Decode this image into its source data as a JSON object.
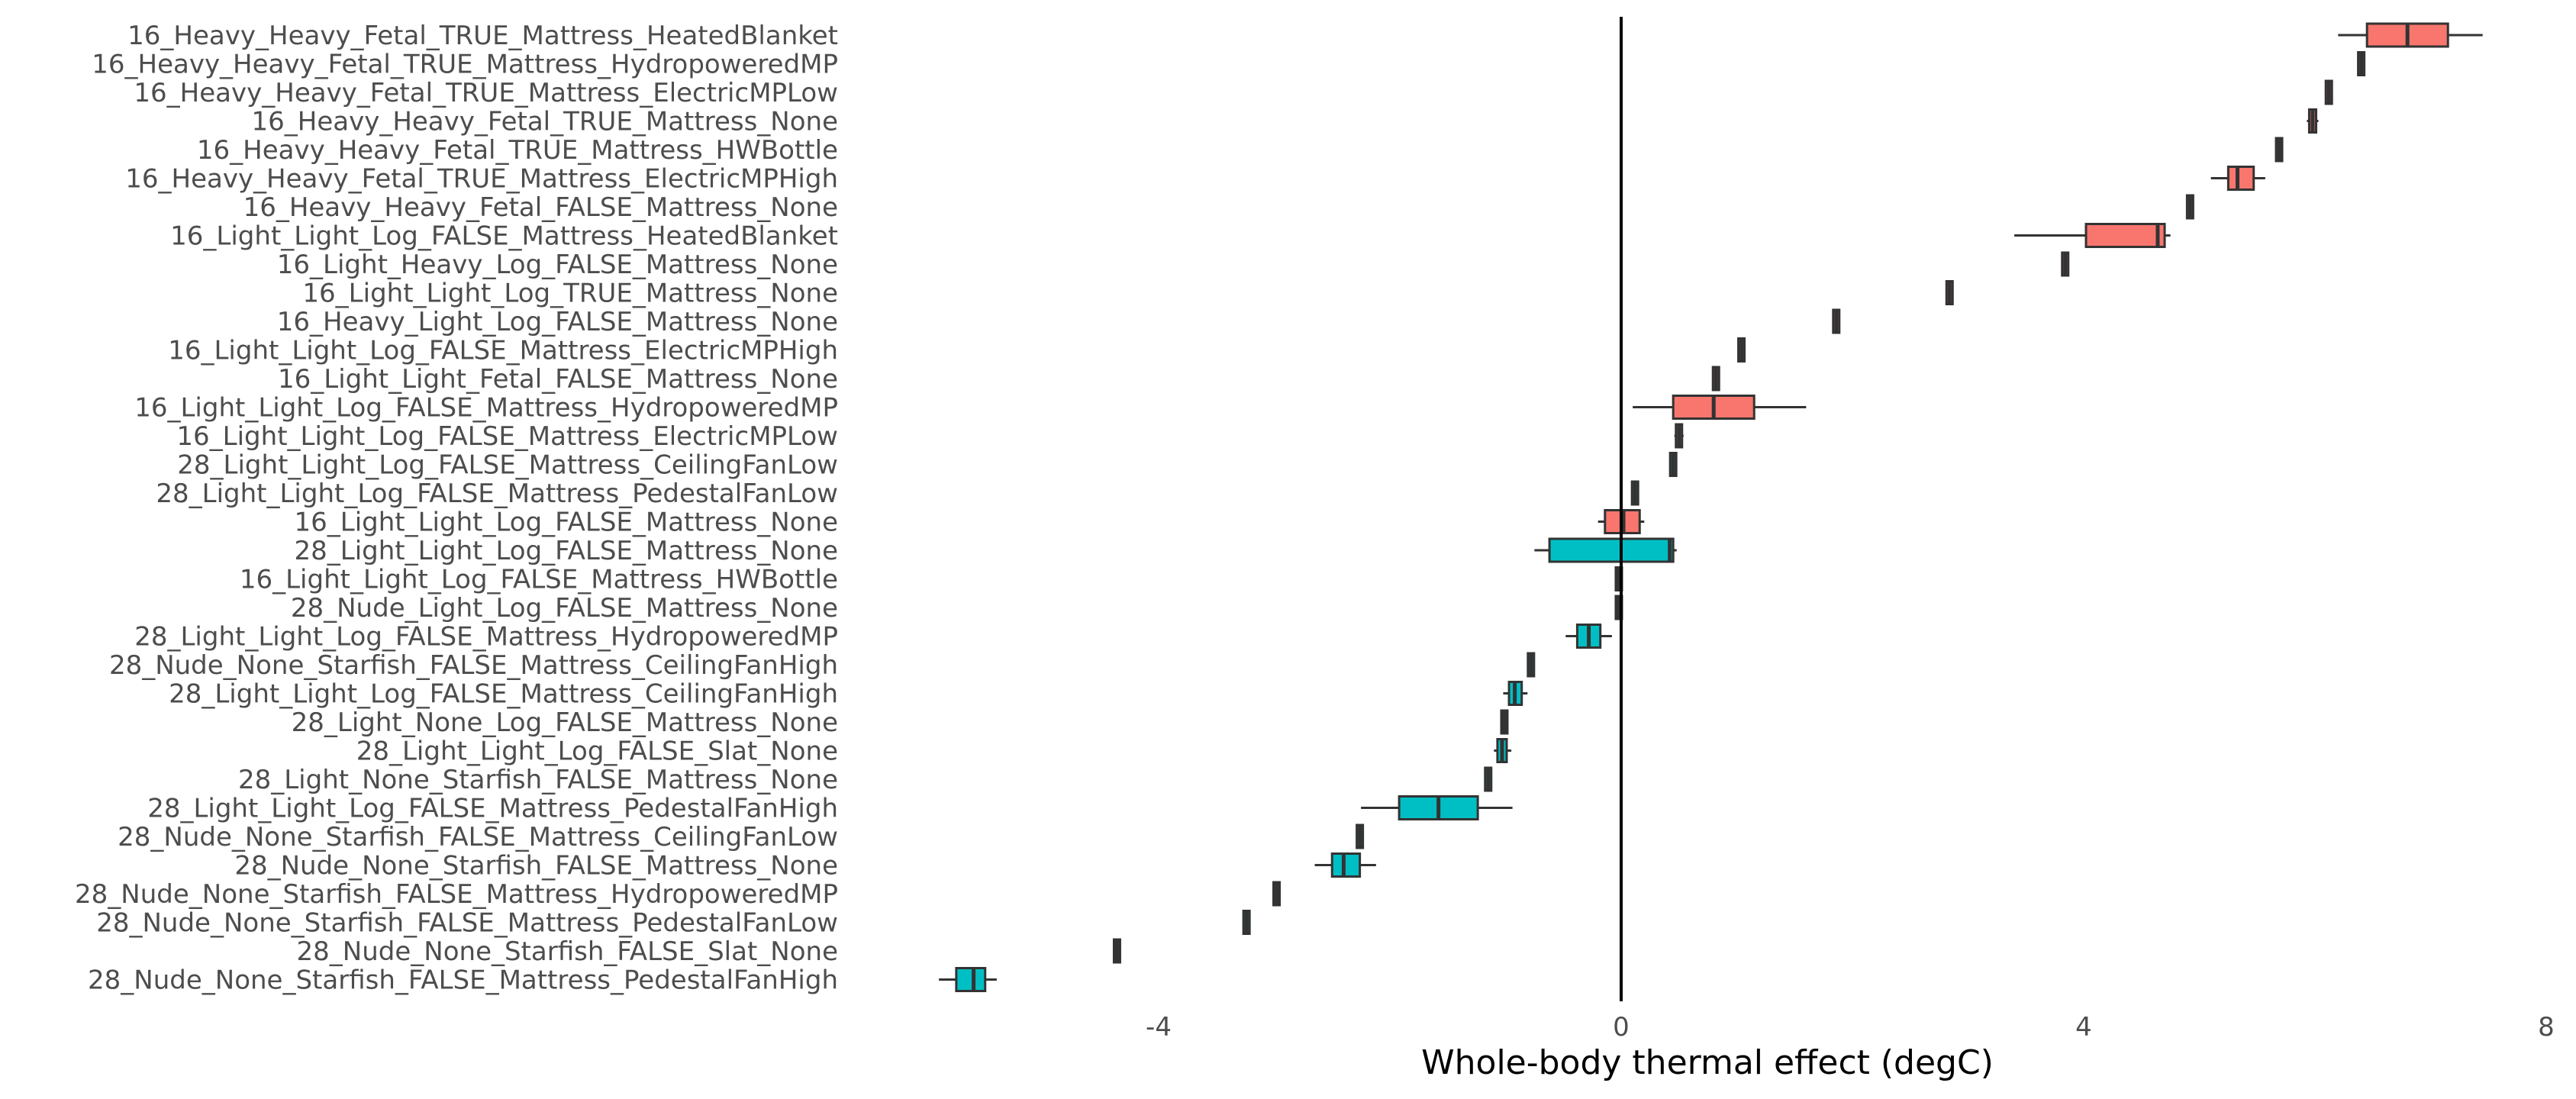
{
  "chart_data": {
    "type": "boxplot-horizontal",
    "xlabel": "Whole-body thermal effect (degC)",
    "ylabel": "",
    "title": "",
    "xlim": [
      -6,
      8
    ],
    "xticks": [
      -4,
      0,
      4,
      8
    ],
    "reference_line_x": 0,
    "grid": false,
    "legend": "none",
    "group_colors": {
      "16": "#F8766D",
      "28": "#00BFC4"
    },
    "edge_color": "#333333",
    "categories": [
      "16_Heavy_Heavy_Fetal_TRUE_Mattress_HeatedBlanket",
      "16_Heavy_Heavy_Fetal_TRUE_Mattress_HydropoweredMP",
      "16_Heavy_Heavy_Fetal_TRUE_Mattress_ElectricMPLow",
      "16_Heavy_Heavy_Fetal_TRUE_Mattress_None",
      "16_Heavy_Heavy_Fetal_TRUE_Mattress_HWBottle",
      "16_Heavy_Heavy_Fetal_TRUE_Mattress_ElectricMPHigh",
      "16_Heavy_Heavy_Fetal_FALSE_Mattress_None",
      "16_Light_Light_Log_FALSE_Mattress_HeatedBlanket",
      "16_Light_Heavy_Log_FALSE_Mattress_None",
      "16_Light_Light_Log_TRUE_Mattress_None",
      "16_Heavy_Light_Log_FALSE_Mattress_None",
      "16_Light_Light_Log_FALSE_Mattress_ElectricMPHigh",
      "16_Light_Light_Fetal_FALSE_Mattress_None",
      "16_Light_Light_Log_FALSE_Mattress_HydropoweredMP",
      "16_Light_Light_Log_FALSE_Mattress_ElectricMPLow",
      "28_Light_Light_Log_FALSE_Mattress_CeilingFanLow",
      "28_Light_Light_Log_FALSE_Mattress_PedestalFanLow",
      "16_Light_Light_Log_FALSE_Mattress_None",
      "28_Light_Light_Log_FALSE_Mattress_None",
      "16_Light_Light_Log_FALSE_Mattress_HWBottle",
      "28_Nude_Light_Log_FALSE_Mattress_None",
      "28_Light_Light_Log_FALSE_Mattress_HydropoweredMP",
      "28_Nude_None_Starfish_FALSE_Mattress_CeilingFanHigh",
      "28_Light_Light_Log_FALSE_Mattress_CeilingFanHigh",
      "28_Light_None_Log_FALSE_Mattress_None",
      "28_Light_Light_Log_FALSE_Slat_None",
      "28_Light_None_Starfish_FALSE_Mattress_None",
      "28_Light_Light_Log_FALSE_Mattress_PedestalFanHigh",
      "28_Nude_None_Starfish_FALSE_Mattress_CeilingFanLow",
      "28_Nude_None_Starfish_FALSE_Mattress_None",
      "28_Nude_None_Starfish_FALSE_Mattress_HydropoweredMP",
      "28_Nude_None_Starfish_FALSE_Mattress_PedestalFanLow",
      "28_Nude_None_Starfish_FALSE_Slat_None",
      "28_Nude_None_Starfish_FALSE_Mattress_PedestalFanHigh"
    ],
    "boxes": [
      {
        "group": "16",
        "min": 6.2,
        "q1": 6.45,
        "median": 6.8,
        "q3": 7.15,
        "max": 7.45
      },
      {
        "group": "16",
        "min": 6.38,
        "q1": 6.39,
        "median": 6.4,
        "q3": 6.41,
        "max": 6.42
      },
      {
        "group": "16",
        "min": 6.1,
        "q1": 6.11,
        "median": 6.12,
        "q3": 6.13,
        "max": 6.14
      },
      {
        "group": "16",
        "min": 5.93,
        "q1": 5.95,
        "median": 5.98,
        "q3": 6.01,
        "max": 6.03
      },
      {
        "group": "16",
        "min": 5.67,
        "q1": 5.68,
        "median": 5.69,
        "q3": 5.7,
        "max": 5.71
      },
      {
        "group": "16",
        "min": 5.1,
        "q1": 5.25,
        "median": 5.33,
        "q3": 5.47,
        "max": 5.57
      },
      {
        "group": "16",
        "min": 4.9,
        "q1": 4.91,
        "median": 4.92,
        "q3": 4.93,
        "max": 4.94
      },
      {
        "group": "16",
        "min": 3.4,
        "q1": 4.02,
        "median": 4.64,
        "q3": 4.7,
        "max": 4.75
      },
      {
        "group": "16",
        "min": 3.82,
        "q1": 3.83,
        "median": 3.84,
        "q3": 3.85,
        "max": 3.86
      },
      {
        "group": "16",
        "min": 2.82,
        "q1": 2.83,
        "median": 2.84,
        "q3": 2.85,
        "max": 2.86
      },
      {
        "group": "16",
        "min": 1.84,
        "q1": 1.85,
        "median": 1.86,
        "q3": 1.87,
        "max": 1.88
      },
      {
        "group": "16",
        "min": 1.02,
        "q1": 1.03,
        "median": 1.04,
        "q3": 1.05,
        "max": 1.06
      },
      {
        "group": "16",
        "min": 0.8,
        "q1": 0.81,
        "median": 0.82,
        "q3": 0.83,
        "max": 0.84
      },
      {
        "group": "16",
        "min": 0.1,
        "q1": 0.45,
        "median": 0.8,
        "q3": 1.15,
        "max": 1.6
      },
      {
        "group": "16",
        "min": 0.46,
        "q1": 0.48,
        "median": 0.5,
        "q3": 0.52,
        "max": 0.54
      },
      {
        "group": "28",
        "min": 0.43,
        "q1": 0.44,
        "median": 0.45,
        "q3": 0.46,
        "max": 0.47
      },
      {
        "group": "28",
        "min": 0.1,
        "q1": 0.11,
        "median": 0.12,
        "q3": 0.13,
        "max": 0.14
      },
      {
        "group": "16",
        "min": -0.2,
        "q1": -0.14,
        "median": 0.02,
        "q3": 0.16,
        "max": 0.2
      },
      {
        "group": "28",
        "min": -0.75,
        "q1": -0.62,
        "median": 0.42,
        "q3": 0.45,
        "max": 0.48
      },
      {
        "group": "16",
        "min": -0.03,
        "q1": -0.025,
        "median": -0.02,
        "q3": -0.015,
        "max": -0.01
      },
      {
        "group": "28",
        "min": -0.03,
        "q1": -0.025,
        "median": -0.02,
        "q3": -0.015,
        "max": -0.01
      },
      {
        "group": "28",
        "min": -0.48,
        "q1": -0.38,
        "median": -0.28,
        "q3": -0.18,
        "max": -0.08
      },
      {
        "group": "28",
        "min": -0.79,
        "q1": -0.785,
        "median": -0.78,
        "q3": -0.775,
        "max": -0.77
      },
      {
        "group": "28",
        "min": -1.02,
        "q1": -0.97,
        "median": -0.92,
        "q3": -0.86,
        "max": -0.81
      },
      {
        "group": "28",
        "min": -1.02,
        "q1": -1.015,
        "median": -1.01,
        "q3": -1.005,
        "max": -1.0
      },
      {
        "group": "28",
        "min": -1.1,
        "q1": -1.07,
        "median": -1.03,
        "q3": -0.99,
        "max": -0.95
      },
      {
        "group": "28",
        "min": -1.16,
        "q1": -1.155,
        "median": -1.15,
        "q3": -1.145,
        "max": -1.14
      },
      {
        "group": "28",
        "min": -2.25,
        "q1": -1.92,
        "median": -1.58,
        "q3": -1.24,
        "max": -0.94
      },
      {
        "group": "28",
        "min": -2.27,
        "q1": -2.265,
        "median": -2.26,
        "q3": -2.255,
        "max": -2.25
      },
      {
        "group": "28",
        "min": -2.65,
        "q1": -2.5,
        "median": -2.4,
        "q3": -2.26,
        "max": -2.12
      },
      {
        "group": "28",
        "min": -2.99,
        "q1": -2.985,
        "median": -2.98,
        "q3": -2.975,
        "max": -2.97
      },
      {
        "group": "28",
        "min": -3.25,
        "q1": -3.245,
        "median": -3.24,
        "q3": -3.235,
        "max": -3.23
      },
      {
        "group": "28",
        "min": -4.37,
        "q1": -4.365,
        "median": -4.36,
        "q3": -4.355,
        "max": -4.35
      },
      {
        "group": "28",
        "min": -5.9,
        "q1": -5.75,
        "median": -5.6,
        "q3": -5.5,
        "max": -5.4
      }
    ]
  }
}
